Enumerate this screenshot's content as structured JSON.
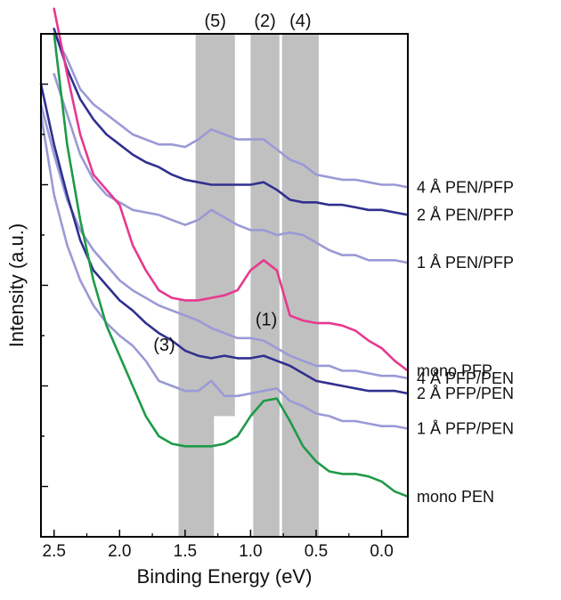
{
  "chart_data": {
    "type": "line",
    "xlabel": "Binding Energy (eV)",
    "ylabel": "Intensity (a.u.)",
    "xlim": [
      2.6,
      -0.2
    ],
    "x_reversed": true,
    "x_ticks": [
      2.5,
      2.0,
      1.5,
      1.0,
      0.5,
      0.0
    ],
    "x_tick_labels": [
      "2.5",
      "2.0",
      "1.5",
      "1.0",
      "0.5",
      "0.0"
    ],
    "ylim": [
      0,
      100
    ],
    "y_tick_labels_shown": false,
    "grid": false,
    "legend": "none (labels placed at right end of each trace)",
    "shaded_regions": [
      {
        "label": "(5)",
        "x_range": [
          1.42,
          1.12
        ],
        "y_range": [
          24,
          100
        ],
        "color": "#c0c0c0"
      },
      {
        "label": "(2)",
        "x_range": [
          1.0,
          0.78
        ],
        "y_range": [
          24,
          100
        ],
        "color": "#c0c0c0"
      },
      {
        "label": "(4)",
        "x_range": [
          0.76,
          0.48
        ],
        "y_range": [
          0,
          100
        ],
        "color": "#c0c0c0"
      },
      {
        "label": "(3)",
        "x_range": [
          1.55,
          1.28
        ],
        "y_range": [
          0,
          47
        ],
        "color": "#c0c0c0"
      },
      {
        "label": "(1)",
        "x_range": [
          0.98,
          0.78
        ],
        "y_range": [
          0,
          41
        ],
        "color": "#c0c0c0"
      }
    ],
    "x": [
      2.6,
      2.5,
      2.4,
      2.3,
      2.2,
      2.1,
      2.0,
      1.9,
      1.8,
      1.7,
      1.6,
      1.5,
      1.4,
      1.3,
      1.2,
      1.1,
      1.0,
      0.9,
      0.8,
      0.7,
      0.6,
      0.5,
      0.4,
      0.3,
      0.2,
      0.1,
      0.0,
      -0.1,
      -0.2
    ],
    "series": [
      {
        "name": "4 Å  PEN/PFP",
        "color": "#9a9ad6",
        "values": [
          null,
          100,
          95,
          89,
          86,
          84,
          82,
          80,
          79,
          78,
          78,
          77.5,
          79,
          81,
          80,
          79,
          79,
          79,
          77,
          75,
          74,
          72,
          71.5,
          71,
          71,
          70.5,
          70,
          70,
          69.5
        ]
      },
      {
        "name": "2 Å  PEN/PFP",
        "color": "#30308f",
        "values": [
          null,
          101,
          93,
          87,
          83,
          80,
          78,
          76,
          74.5,
          73.5,
          72,
          71,
          70.5,
          70,
          70,
          70,
          70,
          70.5,
          69,
          67,
          66.5,
          66.5,
          66,
          66,
          65.5,
          65,
          65,
          64.5,
          64
        ]
      },
      {
        "name": "1 Å PEN/PFP",
        "color": "#9a9ad6",
        "values": [
          null,
          92,
          84,
          76,
          71,
          68,
          66.5,
          65,
          64.5,
          64,
          63,
          62,
          63,
          65,
          63.5,
          62,
          61,
          61,
          60,
          60.5,
          60,
          58.5,
          57,
          56,
          56,
          55,
          55,
          55,
          54.5
        ]
      },
      {
        "name": "mono PFP",
        "color": "#e8388e",
        "values": [
          null,
          105,
          92,
          80,
          72,
          69,
          66,
          58,
          53,
          49,
          47.5,
          47,
          47,
          47.5,
          48,
          49,
          53,
          55,
          53,
          44,
          43,
          42.5,
          42.5,
          42,
          41,
          39,
          37.5,
          35,
          33
        ]
      },
      {
        "name": "4  Å PFP/PEN",
        "color": "#9a9ad6",
        "values": [
          86,
          76,
          67,
          61,
          57,
          54,
          51,
          49,
          47.5,
          46,
          45,
          44,
          43,
          41.5,
          40.5,
          39.5,
          39.5,
          39,
          37.5,
          36,
          35,
          34,
          34,
          33,
          33,
          32.5,
          32,
          32,
          31.5
        ]
      },
      {
        "name": "2  Å PFP/PEN",
        "color": "#30308f",
        "values": [
          90,
          78,
          68,
          59,
          53,
          50,
          47,
          45,
          42.5,
          40.5,
          39,
          37,
          36,
          35.5,
          36,
          35.5,
          35.5,
          36,
          35,
          34,
          32.5,
          31,
          30.5,
          30,
          29.5,
          29,
          29,
          29,
          28.5
        ]
      },
      {
        "name": "1  Å  PFP/PEN",
        "color": "#9a9ad6",
        "values": [
          84,
          68,
          58,
          51,
          46,
          42.5,
          40,
          38,
          35,
          31,
          30,
          29,
          29,
          31,
          28,
          28,
          28.5,
          29,
          29.5,
          27,
          26,
          24.5,
          24,
          23,
          23,
          22.5,
          22,
          22,
          21.5
        ]
      },
      {
        "name": "mono PEN",
        "color": "#1e9a48",
        "values": [
          null,
          100,
          78,
          63,
          51,
          42,
          36,
          30,
          24,
          20,
          18.5,
          18,
          18,
          18,
          18.5,
          20,
          24,
          27,
          27.5,
          23,
          18,
          15,
          13,
          12.5,
          12.5,
          12,
          11,
          9,
          8
        ]
      }
    ]
  }
}
